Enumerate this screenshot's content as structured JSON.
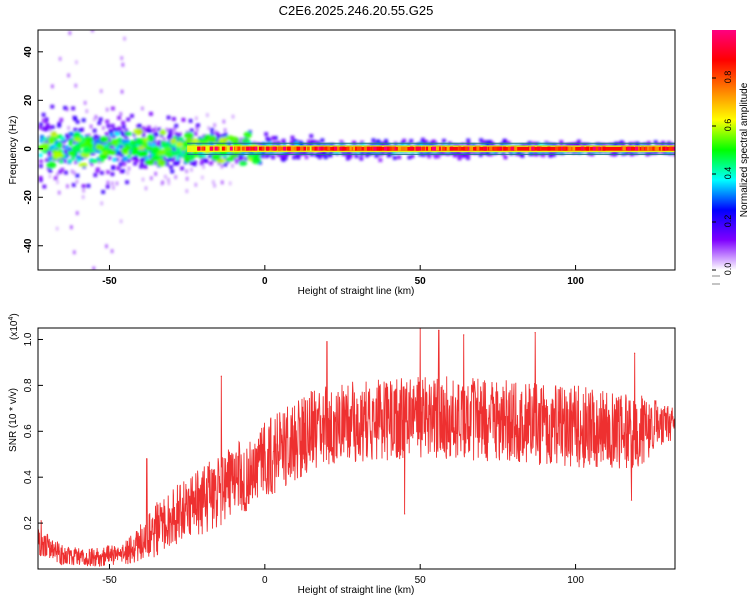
{
  "title": "C2E6.2025.246.20.55.G25",
  "chart_data": [
    {
      "type": "heatmap",
      "name": "frequency-spectrogram",
      "xlabel": "Height of straight line (km)",
      "ylabel": "Frequency (Hz)",
      "xlim": [
        -73,
        132
      ],
      "ylim": [
        -50,
        49
      ],
      "xticks": [
        -50,
        0,
        50,
        100
      ],
      "yticks": [
        -40,
        -20,
        0,
        20,
        40
      ],
      "colorbar": {
        "label": "Normalized spectral amplitude",
        "range": [
          0,
          1
        ],
        "ticks": [
          "0.0",
          "0.2",
          "0.4",
          "0.6",
          "0.8"
        ],
        "ticks_values": [
          0,
          0.2,
          0.4,
          0.6,
          0.8
        ],
        "colors": [
          "#ffffff",
          "#7f00ff",
          "#0000ff",
          "#00ffff",
          "#00ff00",
          "#ffff00",
          "#ff8000",
          "#ff0000",
          "#ff0080"
        ]
      },
      "description": "Noisy scattered spectral energy (violet/blue, broad ±15 Hz) from -73 to about -20 km, narrowing to a strong central line near 0 Hz (orange-red) from about -20 km to 132 km.",
      "center_line_hz": 0,
      "spread_profile": [
        {
          "x": -73,
          "half_width_hz": 14
        },
        {
          "x": -50,
          "half_width_hz": 12
        },
        {
          "x": -30,
          "half_width_hz": 8
        },
        {
          "x": -10,
          "half_width_hz": 5
        },
        {
          "x": 20,
          "half_width_hz": 3
        },
        {
          "x": 132,
          "half_width_hz": 2
        }
      ]
    },
    {
      "type": "line",
      "name": "snr",
      "xlabel": "Height of straight line (km)",
      "ylabel": "SNR (10 * v/v)",
      "multiplier_label": "(x10",
      "multiplier_exp": "4",
      "multiplier_close": ")",
      "xlim": [
        -73,
        132
      ],
      "ylim": [
        0,
        1.05
      ],
      "xticks": [
        -50,
        0,
        50,
        100
      ],
      "yticks": [
        0.2,
        0.4,
        0.6,
        0.8,
        1.0
      ],
      "ytick_labels": [
        "0.2",
        "0.4",
        "0.6",
        "0.8",
        "1.0"
      ],
      "color": "#ee3030",
      "series": [
        {
          "name": "envelope-mean",
          "x": [
            -73,
            -65,
            -55,
            -45,
            -40,
            -35,
            -30,
            -25,
            -20,
            -15,
            -10,
            -5,
            0,
            5,
            10,
            15,
            20,
            30,
            40,
            50,
            60,
            70,
            80,
            90,
            100,
            110,
            115,
            120,
            125,
            132
          ],
          "y": [
            0.12,
            0.06,
            0.05,
            0.07,
            0.11,
            0.17,
            0.22,
            0.26,
            0.3,
            0.34,
            0.38,
            0.42,
            0.47,
            0.52,
            0.56,
            0.6,
            0.62,
            0.64,
            0.65,
            0.66,
            0.66,
            0.65,
            0.64,
            0.63,
            0.62,
            0.61,
            0.6,
            0.6,
            0.62,
            0.62
          ]
        },
        {
          "name": "envelope-amplitude",
          "x": [
            -73,
            -60,
            -45,
            -35,
            -20,
            0,
            20,
            40,
            60,
            80,
            100,
            120,
            132
          ],
          "y": [
            0.06,
            0.04,
            0.05,
            0.12,
            0.15,
            0.17,
            0.18,
            0.18,
            0.18,
            0.18,
            0.18,
            0.16,
            0.08
          ]
        }
      ],
      "peaks": [
        {
          "x": -72,
          "y": 0.21
        },
        {
          "x": -38,
          "y": 0.48
        },
        {
          "x": -14,
          "y": 0.84
        },
        {
          "x": 20,
          "y": 0.99
        },
        {
          "x": 45,
          "y": 0.24
        },
        {
          "x": 50,
          "y": 1.05
        },
        {
          "x": 56,
          "y": 1.04
        },
        {
          "x": 64,
          "y": 1.02
        },
        {
          "x": 87,
          "y": 1.03
        },
        {
          "x": 119,
          "y": 0.94
        },
        {
          "x": 118,
          "y": 0.3
        }
      ]
    }
  ]
}
